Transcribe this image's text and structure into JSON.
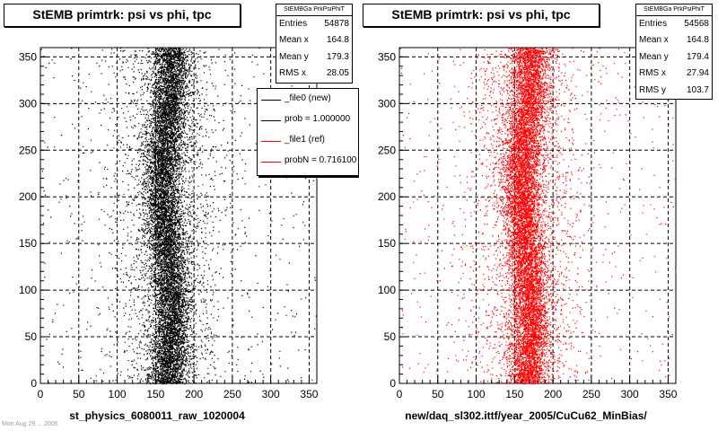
{
  "chart_data": [
    {
      "type": "scatter",
      "title": "StEMB primtrk: psi vs phi, tpc",
      "xlabel": "st_physics_6080011_raw_1020004",
      "ylabel": "",
      "xlim": [
        0,
        360
      ],
      "ylim": [
        0,
        360
      ],
      "xticks": [
        0,
        50,
        100,
        150,
        200,
        250,
        300,
        350
      ],
      "yticks": [
        0,
        50,
        100,
        150,
        200,
        250,
        300,
        350
      ],
      "grid": true,
      "marker_color": "#000000",
      "band": {
        "x_center": 165,
        "x_width": 22
      },
      "stats": {
        "header": "StEMBGa PrkPsiPhiT",
        "rows": [
          {
            "label": "Entries",
            "value": "54878"
          },
          {
            "label": "Mean x",
            "value": "164.8"
          },
          {
            "label": "Mean y",
            "value": "179.3"
          },
          {
            "label": "RMS x",
            "value": "28.05"
          }
        ]
      },
      "legend": {
        "position": "top-right",
        "entries": [
          {
            "label": "_file0 (new)",
            "color": "#000000"
          },
          {
            "label": "prob = 1.000000",
            "color": "#000000"
          },
          {
            "label": "_file1 (ref)",
            "color": "#ff0000"
          },
          {
            "label": "probN = 0.716100",
            "color": "#ff0000"
          }
        ]
      }
    },
    {
      "type": "scatter",
      "title": "StEMB primtrk: psi vs phi, tpc",
      "xlabel": "new/daq_sl302.ittf/year_2005/CuCu62_MinBias/",
      "ylabel": "",
      "xlim": [
        0,
        360
      ],
      "ylim": [
        0,
        360
      ],
      "xticks": [
        0,
        50,
        100,
        150,
        200,
        250,
        300,
        350
      ],
      "yticks": [
        0,
        50,
        100,
        150,
        200,
        250,
        300,
        350
      ],
      "grid": true,
      "marker_color": "#ff0000",
      "band": {
        "x_center": 165,
        "x_width": 22
      },
      "stats": {
        "header": "StEMBGa PrkPsiPhiT",
        "rows": [
          {
            "label": "Entries",
            "value": "54568"
          },
          {
            "label": "Mean x",
            "value": "164.8"
          },
          {
            "label": "Mean y",
            "value": "179.4"
          },
          {
            "label": "RMS x",
            "value": "27.94"
          },
          {
            "label": "RMS y",
            "value": "103.7"
          }
        ]
      }
    }
  ],
  "footnote": "Mon Aug 29 ... 2005"
}
